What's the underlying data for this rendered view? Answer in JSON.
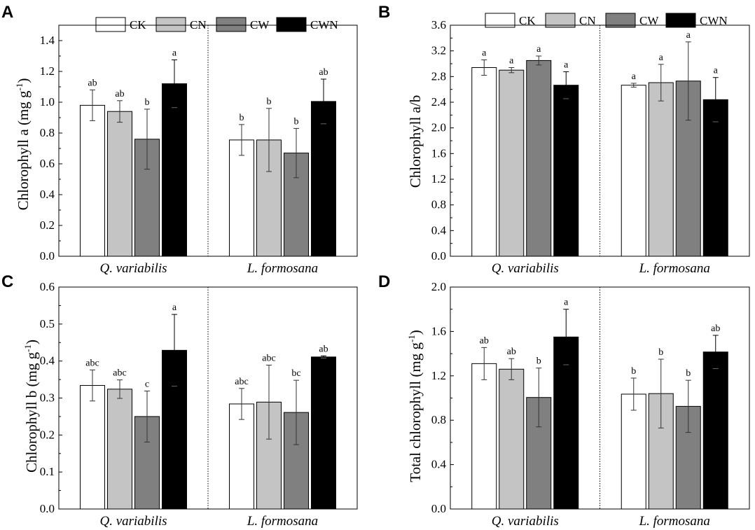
{
  "legend": [
    "CK",
    "CN",
    "CW",
    "CWN"
  ],
  "colors": {
    "CK": "#ffffff",
    "CN": "#c4c4c4",
    "CW": "#808080",
    "CWN": "#000000"
  },
  "chart_data": [
    {
      "panel": "A",
      "type": "bar",
      "ylabel": "Chlorophyll a (mg g",
      "ylabel_sup": "-1",
      "ylabel_tail": ")",
      "ylim": [
        0,
        1.5
      ],
      "yticks": [
        "0.0",
        "0.2",
        "0.4",
        "0.6",
        "0.8",
        "1.0",
        "1.2",
        "1.4"
      ],
      "categories": [
        "Q. variabilis",
        "L. formosana"
      ],
      "series": [
        {
          "name": "CK",
          "values": [
            0.98,
            0.755
          ],
          "errors": [
            0.1,
            0.1
          ],
          "letters": [
            "ab",
            "b"
          ]
        },
        {
          "name": "CN",
          "values": [
            0.94,
            0.755
          ],
          "errors": [
            0.07,
            0.205
          ],
          "letters": [
            "ab",
            "b"
          ]
        },
        {
          "name": "CW",
          "values": [
            0.76,
            0.67
          ],
          "errors": [
            0.195,
            0.16
          ],
          "letters": [
            "b",
            "b"
          ]
        },
        {
          "name": "CWN",
          "values": [
            1.12,
            1.005
          ],
          "errors": [
            0.155,
            0.145
          ],
          "letters": [
            "a",
            "ab"
          ]
        }
      ]
    },
    {
      "panel": "B",
      "type": "bar",
      "ylabel": "Chlorophyll a/b",
      "ylabel_sup": "",
      "ylabel_tail": "",
      "ylim": [
        0,
        3.6
      ],
      "yticks": [
        "0.0",
        "0.4",
        "0.8",
        "1.2",
        "1.6",
        "2.0",
        "2.4",
        "2.8",
        "3.2",
        "3.6"
      ],
      "categories": [
        "Q. variabilis",
        "L. formosana"
      ],
      "series": [
        {
          "name": "CK",
          "values": [
            2.94,
            2.665
          ],
          "errors": [
            0.12,
            0.03
          ],
          "letters": [
            "a",
            "a"
          ]
        },
        {
          "name": "CN",
          "values": [
            2.9,
            2.705
          ],
          "errors": [
            0.04,
            0.285
          ],
          "letters": [
            "a",
            "a"
          ]
        },
        {
          "name": "CW",
          "values": [
            3.05,
            2.73
          ],
          "errors": [
            0.07,
            0.61
          ],
          "letters": [
            "a",
            "a"
          ]
        },
        {
          "name": "CWN",
          "values": [
            2.665,
            2.44
          ],
          "errors": [
            0.21,
            0.345
          ],
          "letters": [
            "a",
            "a"
          ]
        }
      ]
    },
    {
      "panel": "C",
      "type": "bar",
      "ylabel": "Chlorophyll b (mg g",
      "ylabel_sup": "-1",
      "ylabel_tail": ")",
      "ylim": [
        0,
        0.6
      ],
      "yticks": [
        "0.0",
        "0.1",
        "0.2",
        "0.3",
        "0.4",
        "0.5",
        "0.6"
      ],
      "categories": [
        "Q. variabilis",
        "L. formosana"
      ],
      "series": [
        {
          "name": "CK",
          "values": [
            0.334,
            0.284
          ],
          "errors": [
            0.042,
            0.042
          ],
          "letters": [
            "abc",
            "abc"
          ]
        },
        {
          "name": "CN",
          "values": [
            0.324,
            0.289
          ],
          "errors": [
            0.025,
            0.1
          ],
          "letters": [
            "abc",
            "abc"
          ]
        },
        {
          "name": "CW",
          "values": [
            0.25,
            0.261
          ],
          "errors": [
            0.069,
            0.087
          ],
          "letters": [
            "c",
            "bc"
          ]
        },
        {
          "name": "CWN",
          "values": [
            0.429,
            0.411
          ],
          "errors": [
            0.097,
            0.003
          ],
          "letters": [
            "a",
            "ab"
          ]
        }
      ]
    },
    {
      "panel": "D",
      "type": "bar",
      "ylabel": "Total chlorophyll (mg g",
      "ylabel_sup": "-1",
      "ylabel_tail": ")",
      "ylim": [
        0,
        2.0
      ],
      "yticks": [
        "0.0",
        "0.4",
        "0.8",
        "1.2",
        "1.6",
        "2.0"
      ],
      "categories": [
        "Q. variabilis",
        "L. formosana"
      ],
      "series": [
        {
          "name": "CK",
          "values": [
            1.31,
            1.035
          ],
          "errors": [
            0.145,
            0.145
          ],
          "letters": [
            "ab",
            "b"
          ]
        },
        {
          "name": "CN",
          "values": [
            1.26,
            1.04
          ],
          "errors": [
            0.095,
            0.31
          ],
          "letters": [
            "ab",
            "b"
          ]
        },
        {
          "name": "CW",
          "values": [
            1.005,
            0.925
          ],
          "errors": [
            0.265,
            0.235
          ],
          "letters": [
            "b",
            "b"
          ]
        },
        {
          "name": "CWN",
          "values": [
            1.55,
            1.415
          ],
          "errors": [
            0.25,
            0.15
          ],
          "letters": [
            "a",
            "ab"
          ]
        }
      ]
    }
  ]
}
